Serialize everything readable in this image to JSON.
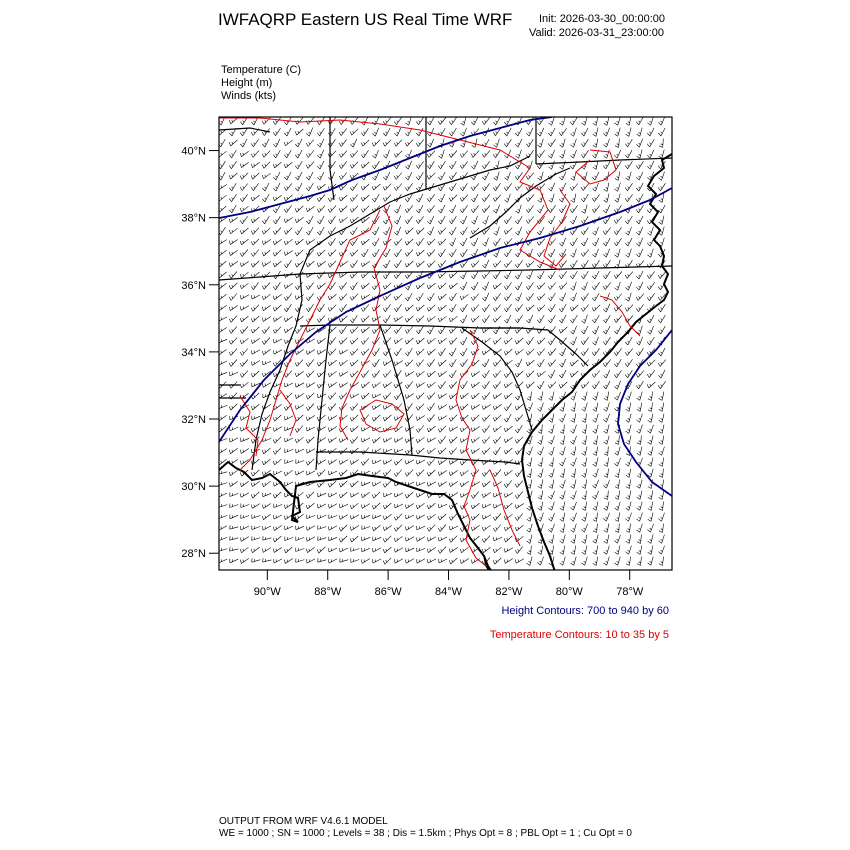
{
  "header": {
    "title": "IWFAQRP Eastern US Real Time WRF",
    "init": "Init: 2026-03-30_00:00:00",
    "valid": "Valid: 2026-03-31_23:00:00"
  },
  "fields": [
    "Temperature   (C)",
    "Height   (m)",
    "Winds   (kts)"
  ],
  "map": {
    "lon_range": [
      -91.6,
      -76.6
    ],
    "lat_range": [
      27.5,
      41.0
    ],
    "lat_ticks": [
      {
        "value": 40,
        "label": "40°N"
      },
      {
        "value": 38,
        "label": "38°N"
      },
      {
        "value": 36,
        "label": "36°N"
      },
      {
        "value": 34,
        "label": "34°N"
      },
      {
        "value": 32,
        "label": "32°N"
      },
      {
        "value": 30,
        "label": "30°N"
      },
      {
        "value": 28,
        "label": "28°N"
      }
    ],
    "lon_ticks": [
      {
        "value": -90,
        "label": "90°W"
      },
      {
        "value": -88,
        "label": "88°W"
      },
      {
        "value": -86,
        "label": "86°W"
      },
      {
        "value": -84,
        "label": "84°W"
      },
      {
        "value": -82,
        "label": "82°W"
      },
      {
        "value": -80,
        "label": "80°W"
      },
      {
        "value": -78,
        "label": "78°W"
      }
    ],
    "colors": {
      "height": "#00007f",
      "temperature": "#e00000",
      "boundaries": "#000000"
    }
  },
  "legend": {
    "height": "Height Contours: 700 to 940 by 60",
    "temperature": "Temperature Contours: 10 to 35 by 5"
  },
  "footer": {
    "line1": "OUTPUT FROM WRF V4.6.1 MODEL",
    "line2": "WE = 1000 ; SN = 1000 ; Levels = 38 ; Dis = 1.5km ; Phys Opt = 8 ; PBL Opt = 1 ; Cu Opt = 0"
  }
}
